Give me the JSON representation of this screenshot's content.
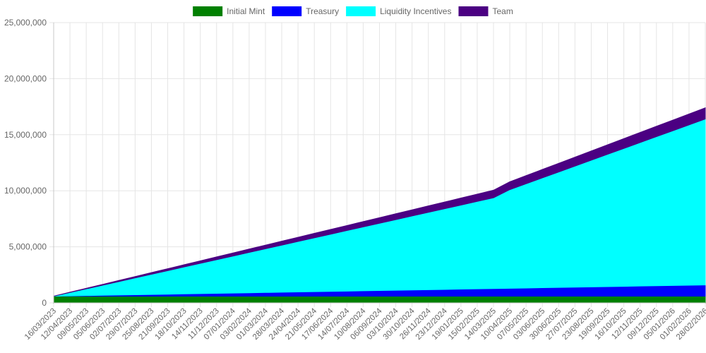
{
  "chart_data": {
    "type": "area",
    "stacked": true,
    "title": "",
    "xlabel": "",
    "ylabel": "",
    "legend_position": "top-center",
    "grid": true,
    "ylim": [
      0,
      25000000
    ],
    "y_ticks": [
      0,
      5000000,
      10000000,
      15000000,
      20000000,
      25000000
    ],
    "y_tick_labels": [
      "0",
      "5,000,000",
      "10,000,000",
      "15,000,000",
      "20,000,000",
      "25,000,000"
    ],
    "x": [
      "16/03/2023",
      "12/04/2023",
      "09/05/2023",
      "05/06/2023",
      "02/07/2023",
      "29/07/2023",
      "25/08/2023",
      "21/09/2023",
      "18/10/2023",
      "14/11/2023",
      "11/12/2023",
      "07/01/2024",
      "03/02/2024",
      "01/03/2024",
      "28/03/2024",
      "24/04/2024",
      "21/05/2024",
      "17/06/2024",
      "14/07/2024",
      "10/08/2024",
      "06/09/2024",
      "03/10/2024",
      "30/10/2024",
      "26/11/2024",
      "23/12/2024",
      "19/01/2025",
      "15/02/2025",
      "14/03/2025",
      "10/04/2025",
      "07/05/2025",
      "03/06/2025",
      "30/06/2025",
      "27/07/2025",
      "23/08/2025",
      "19/09/2025",
      "16/10/2025",
      "12/11/2025",
      "09/12/2025",
      "05/01/2026",
      "01/02/2026",
      "28/02/2026"
    ],
    "series": [
      {
        "name": "Initial Mint",
        "color": "#008000",
        "values": [
          600000,
          600000,
          600000,
          600000,
          600000,
          600000,
          600000,
          600000,
          600000,
          600000,
          600000,
          600000,
          600000,
          600000,
          600000,
          600000,
          600000,
          600000,
          600000,
          600000,
          600000,
          600000,
          600000,
          600000,
          600000,
          600000,
          600000,
          600000,
          600000,
          600000,
          600000,
          600000,
          600000,
          600000,
          600000,
          600000,
          600000,
          600000,
          600000,
          600000,
          600000
        ]
      },
      {
        "name": "Treasury",
        "color": "#0000ff",
        "values": [
          0,
          25000,
          50000,
          75000,
          100000,
          125000,
          150000,
          175000,
          200000,
          225000,
          250000,
          275000,
          300000,
          325000,
          350000,
          375000,
          400000,
          425000,
          450000,
          475000,
          500000,
          525000,
          550000,
          575000,
          600000,
          625000,
          650000,
          675000,
          700000,
          725000,
          750000,
          775000,
          800000,
          825000,
          850000,
          875000,
          900000,
          925000,
          950000,
          975000,
          1000000
        ]
      },
      {
        "name": "Liquidity Incentives",
        "color": "#00ffff",
        "values": [
          0,
          300000,
          600000,
          900000,
          1200000,
          1500000,
          1800000,
          2100000,
          2400000,
          2700000,
          3000000,
          3300000,
          3600000,
          3900000,
          4200000,
          4500000,
          4800000,
          5100000,
          5400000,
          5700000,
          6000000,
          6300000,
          6600000,
          6900000,
          7200000,
          7500000,
          7800000,
          8100000,
          8800000,
          9300000,
          9800000,
          10300000,
          10800000,
          11300000,
          11800000,
          12300000,
          12800000,
          13300000,
          13800000,
          14300000,
          14800000
        ]
      },
      {
        "name": "Team",
        "color": "#4b0082",
        "values": [
          0,
          25000,
          50000,
          75000,
          100000,
          125000,
          150000,
          175000,
          200000,
          225000,
          250000,
          275000,
          300000,
          325000,
          350000,
          375000,
          400000,
          425000,
          450000,
          475000,
          500000,
          525000,
          550000,
          575000,
          600000,
          625000,
          650000,
          675000,
          700000,
          725000,
          750000,
          775000,
          800000,
          825000,
          850000,
          875000,
          900000,
          925000,
          950000,
          975000,
          1000000
        ]
      }
    ]
  }
}
